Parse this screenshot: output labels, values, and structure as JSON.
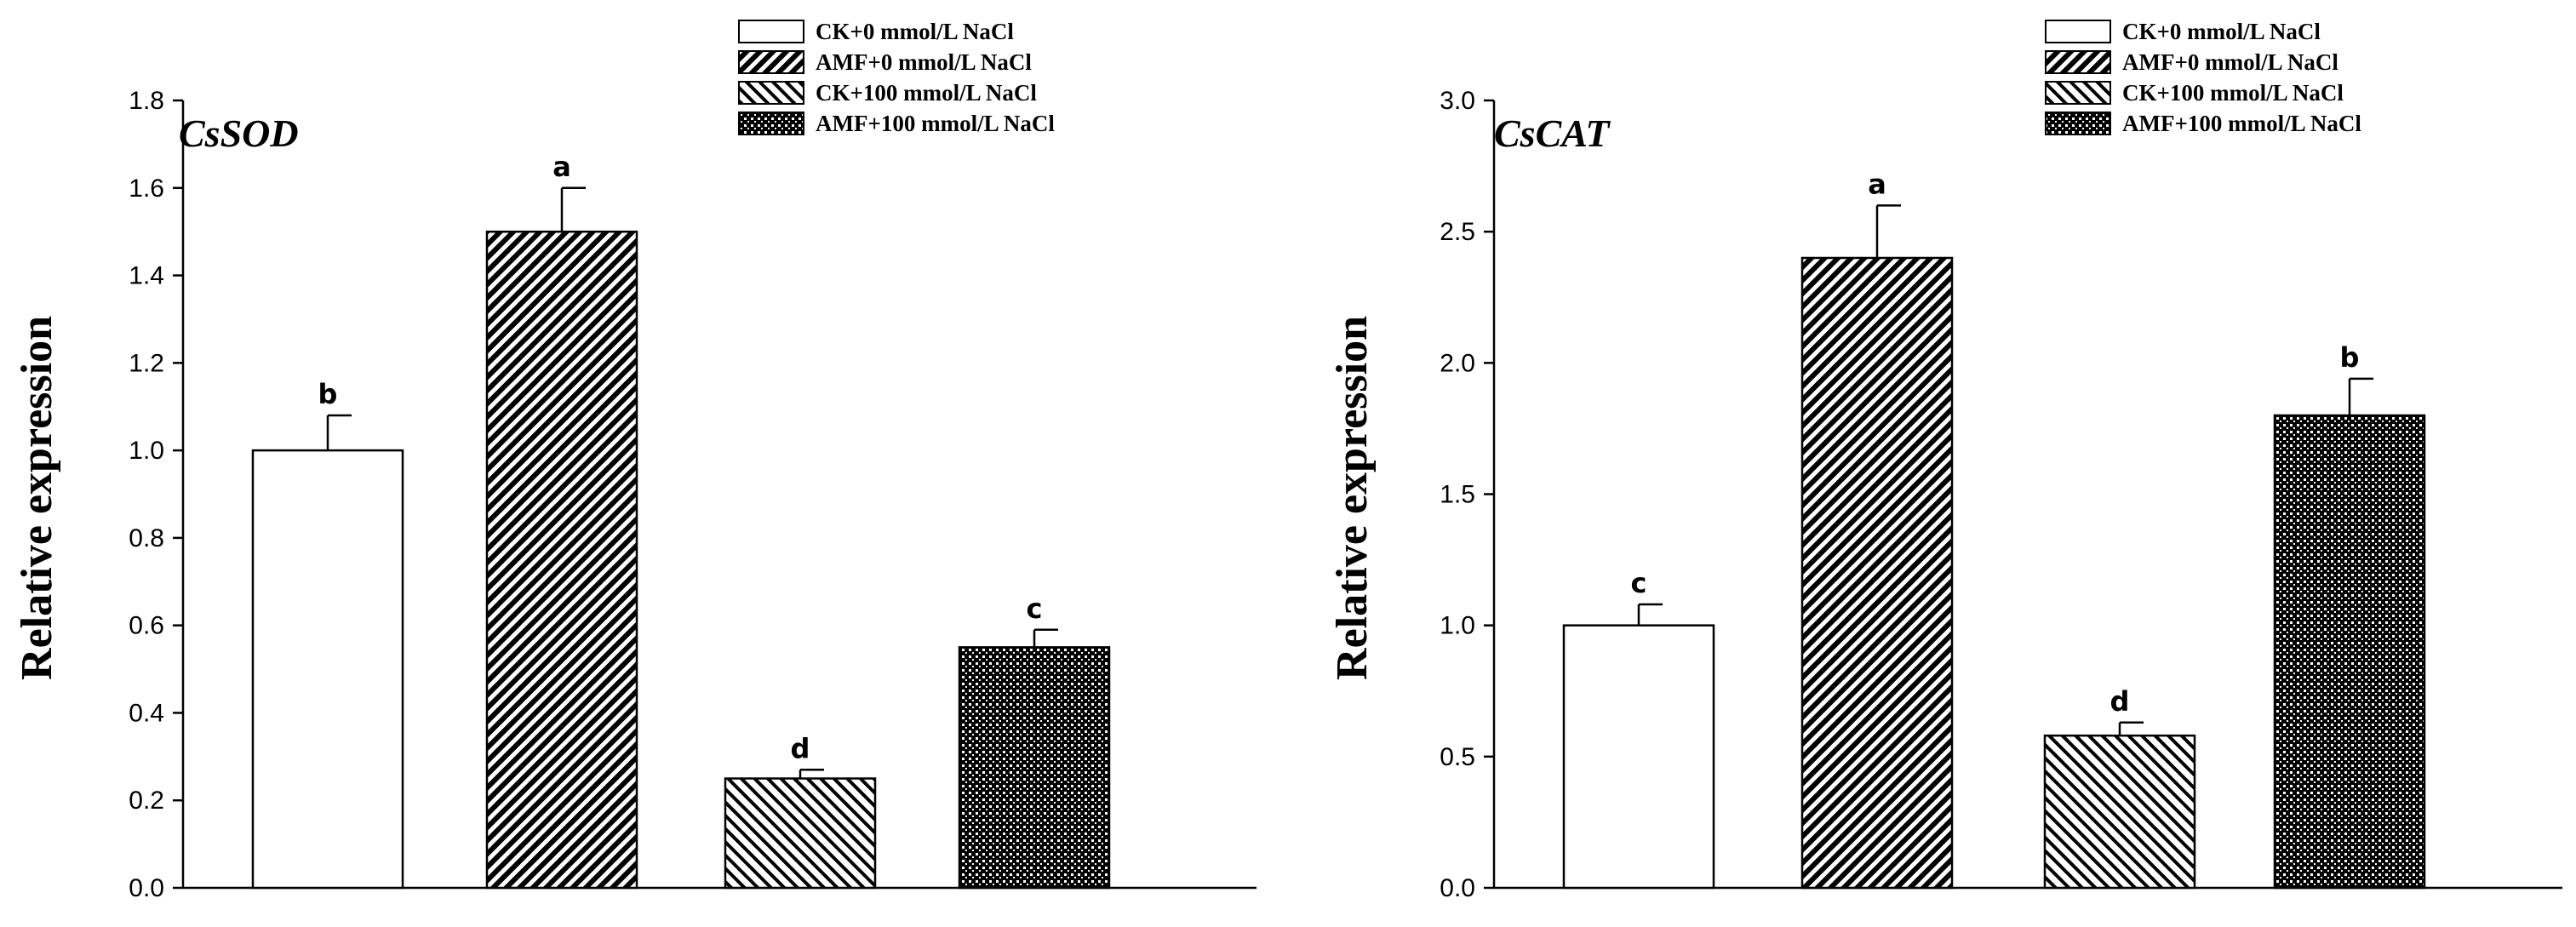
{
  "legend": [
    {
      "label": "CK+0 mmol/L NaCl",
      "pattern": "white"
    },
    {
      "label": "AMF+0 mmol/L NaCl",
      "pattern": "hatch-dense"
    },
    {
      "label": "CK+100 mmol/L NaCl",
      "pattern": "hatch-sparse"
    },
    {
      "label": "AMF+100 mmol/L NaCl",
      "pattern": "crosshatch"
    }
  ],
  "chart_data": [
    {
      "type": "bar",
      "title": "CsSOD",
      "ylabel": "Relative expression",
      "xlabel": "",
      "ylim": [
        0,
        1.8
      ],
      "yticks": [
        "0.0",
        "0.2",
        "0.4",
        "0.6",
        "0.8",
        "1.0",
        "1.2",
        "1.4",
        "1.6",
        "1.8"
      ],
      "categories": [
        "CK+0 mmol/L NaCl",
        "AMF+0 mmol/L NaCl",
        "CK+100 mmol/L NaCl",
        "AMF+100 mmol/L NaCl"
      ],
      "values": [
        1.0,
        1.5,
        0.25,
        0.55
      ],
      "errors": [
        0.08,
        0.1,
        0.02,
        0.04
      ],
      "significance": [
        "b",
        "a",
        "d",
        "c"
      ]
    },
    {
      "type": "bar",
      "title": "CsCAT",
      "ylabel": "Relative expression",
      "xlabel": "",
      "ylim": [
        0,
        3.0
      ],
      "yticks": [
        "0.0",
        "0.5",
        "1.0",
        "1.5",
        "2.0",
        "2.5",
        "3.0"
      ],
      "categories": [
        "CK+0 mmol/L NaCl",
        "AMF+0 mmol/L NaCl",
        "CK+100 mmol/L NaCl",
        "AMF+100 mmol/L NaCl"
      ],
      "values": [
        1.0,
        2.4,
        0.58,
        1.8
      ],
      "errors": [
        0.08,
        0.2,
        0.05,
        0.14
      ],
      "significance": [
        "c",
        "a",
        "d",
        "b"
      ]
    }
  ]
}
